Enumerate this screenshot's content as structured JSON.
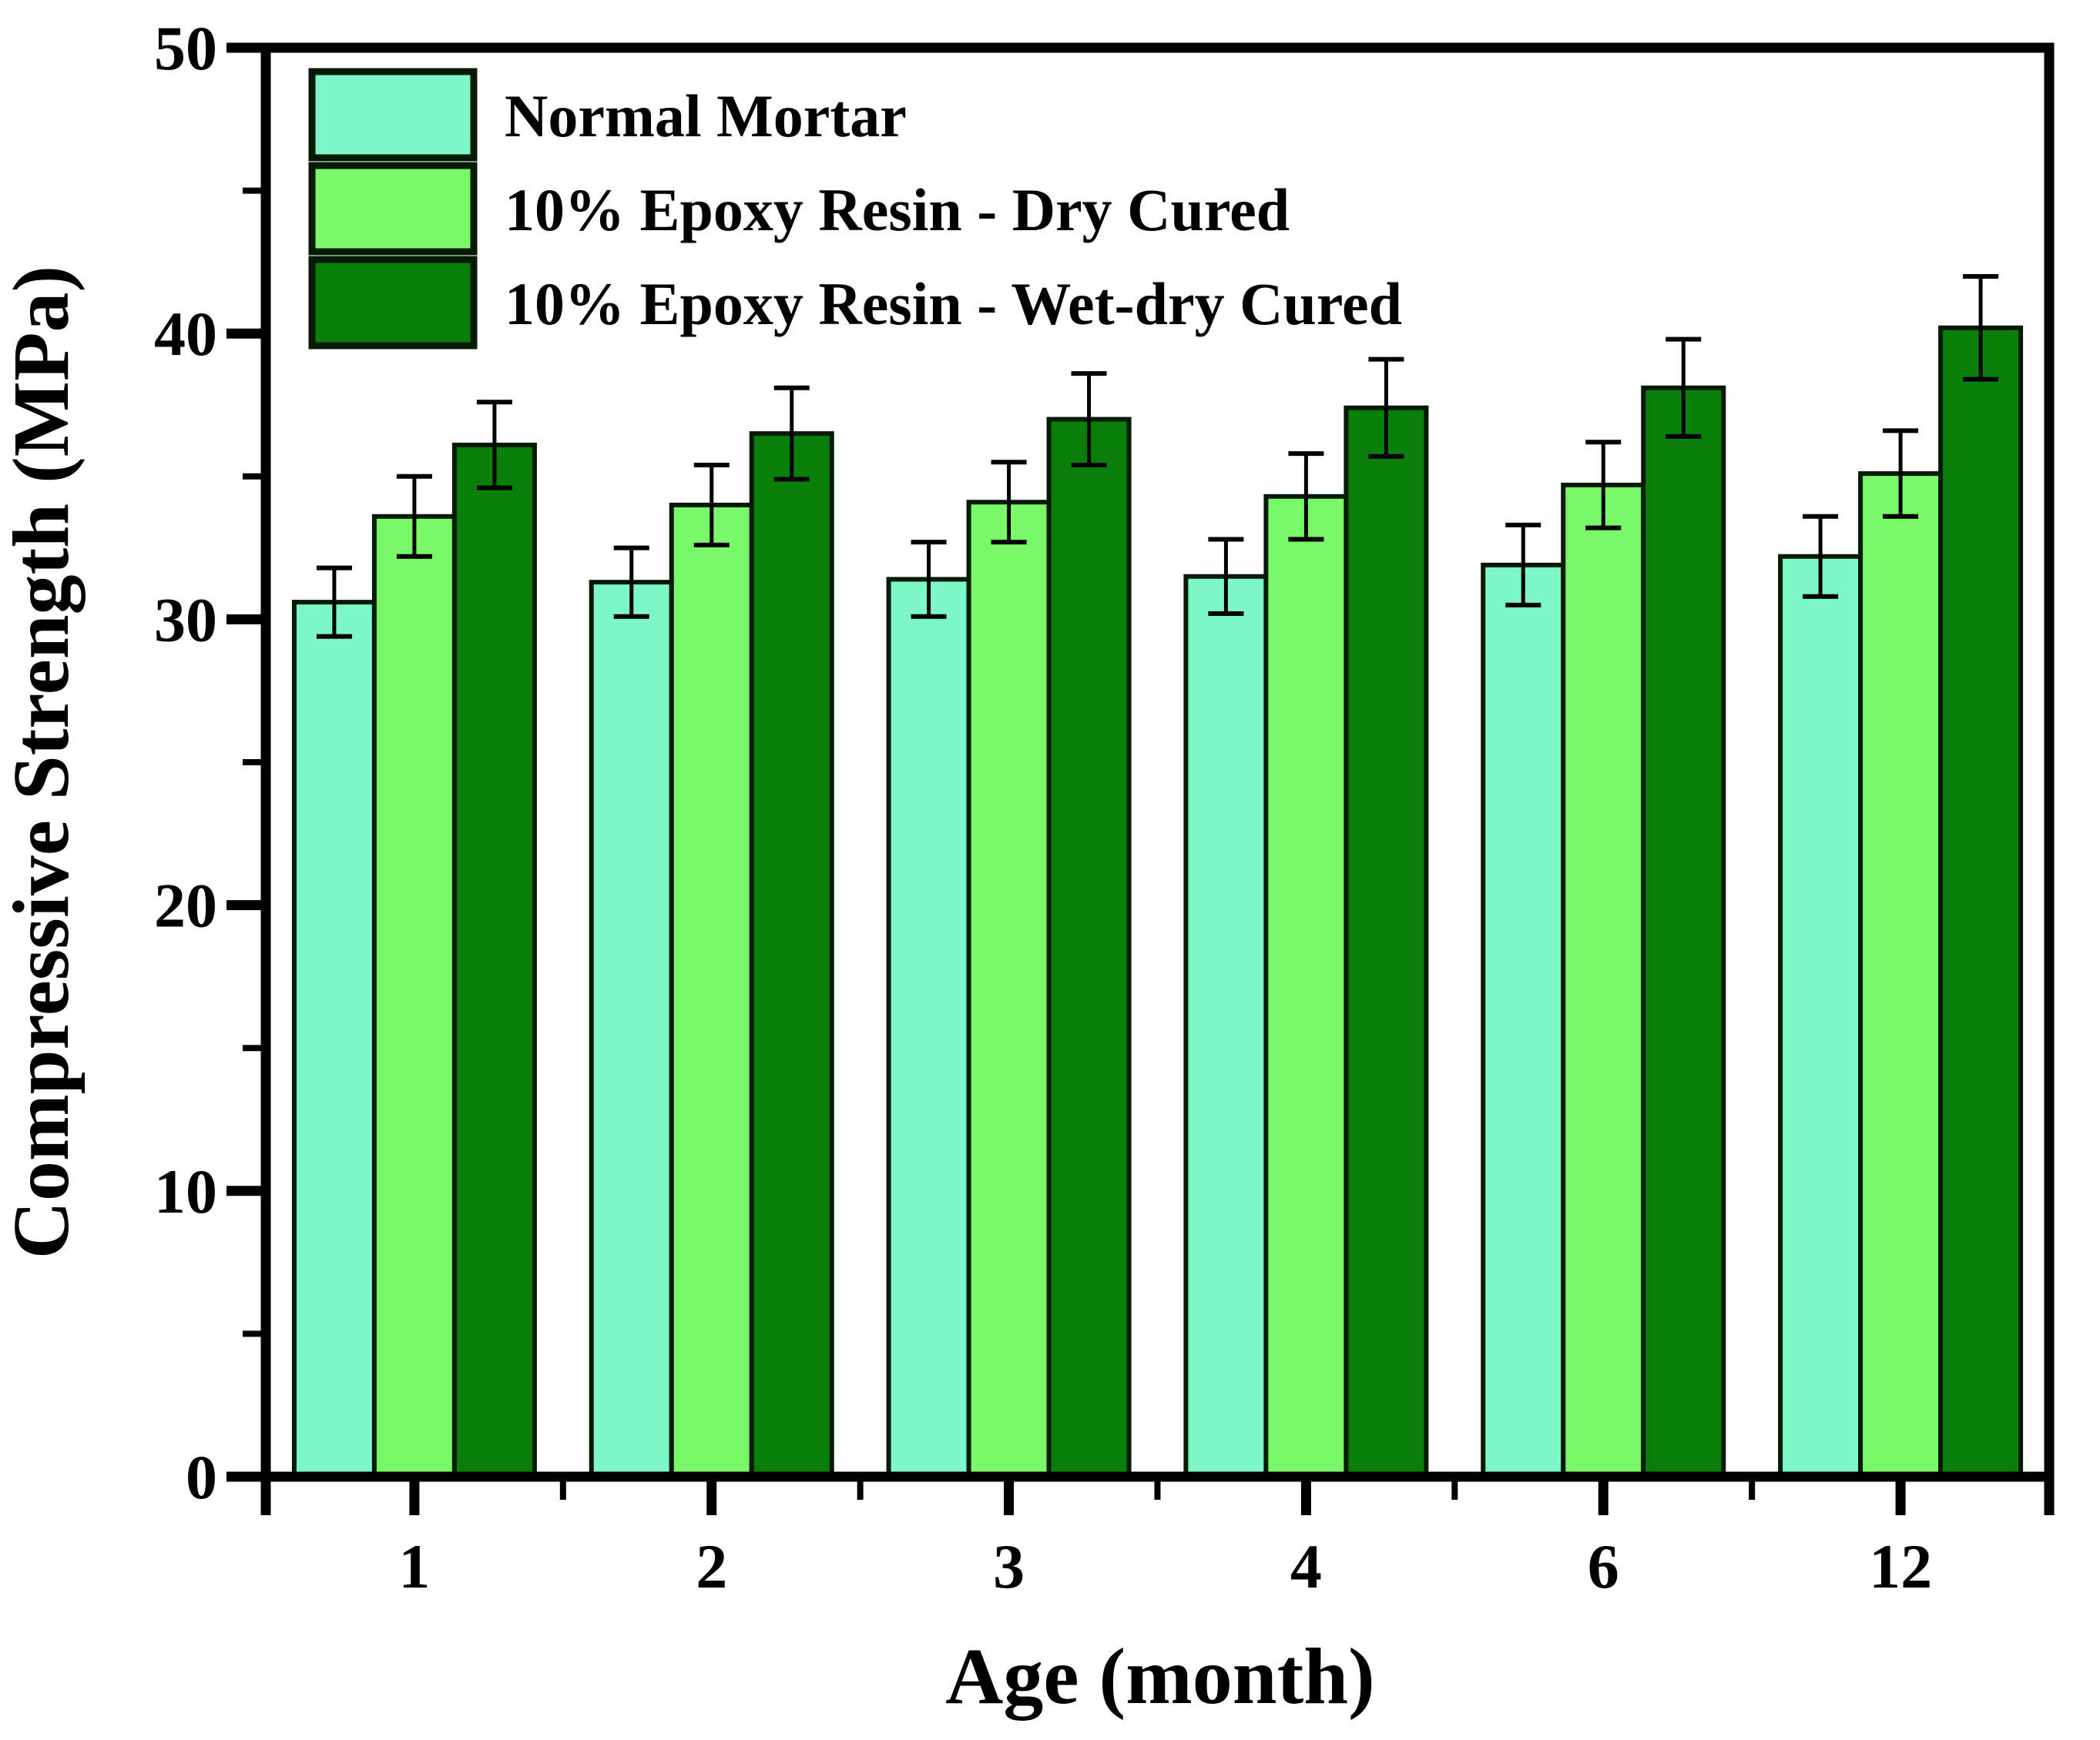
{
  "figure": {
    "background": "#ffffff",
    "axis_color": "#000000",
    "bar_border_color": "#041a04"
  },
  "chart_data": {
    "type": "bar",
    "title": "",
    "xlabel": "Age (month)",
    "ylabel": "Compressive Strength (MPa)",
    "categories": [
      "1",
      "2",
      "3",
      "4",
      "6",
      "12"
    ],
    "ylim": [
      0,
      50
    ],
    "yticks": [
      0,
      10,
      20,
      30,
      40,
      50
    ],
    "ytick_minor_interval": 5,
    "grid": false,
    "legend_position": "top-left-inside",
    "error_bars": true,
    "series": [
      {
        "name": "Normal Mortar",
        "color": "#7df6c8",
        "values": [
          30.6,
          31.3,
          31.4,
          31.5,
          31.9,
          32.2
        ],
        "errors": [
          1.2,
          1.2,
          1.3,
          1.3,
          1.4,
          1.4
        ]
      },
      {
        "name": "10% Epoxy Resin - Dry Cured",
        "color": "#79f868",
        "values": [
          33.6,
          34.0,
          34.1,
          34.3,
          34.7,
          35.1
        ],
        "errors": [
          1.4,
          1.4,
          1.4,
          1.5,
          1.5,
          1.5
        ]
      },
      {
        "name": "10% Epoxy Resin - Wet-dry Cured",
        "color": "#097f09",
        "values": [
          36.1,
          36.5,
          37.0,
          37.4,
          38.1,
          40.2
        ],
        "errors": [
          1.5,
          1.6,
          1.6,
          1.7,
          1.7,
          1.8
        ]
      }
    ]
  }
}
